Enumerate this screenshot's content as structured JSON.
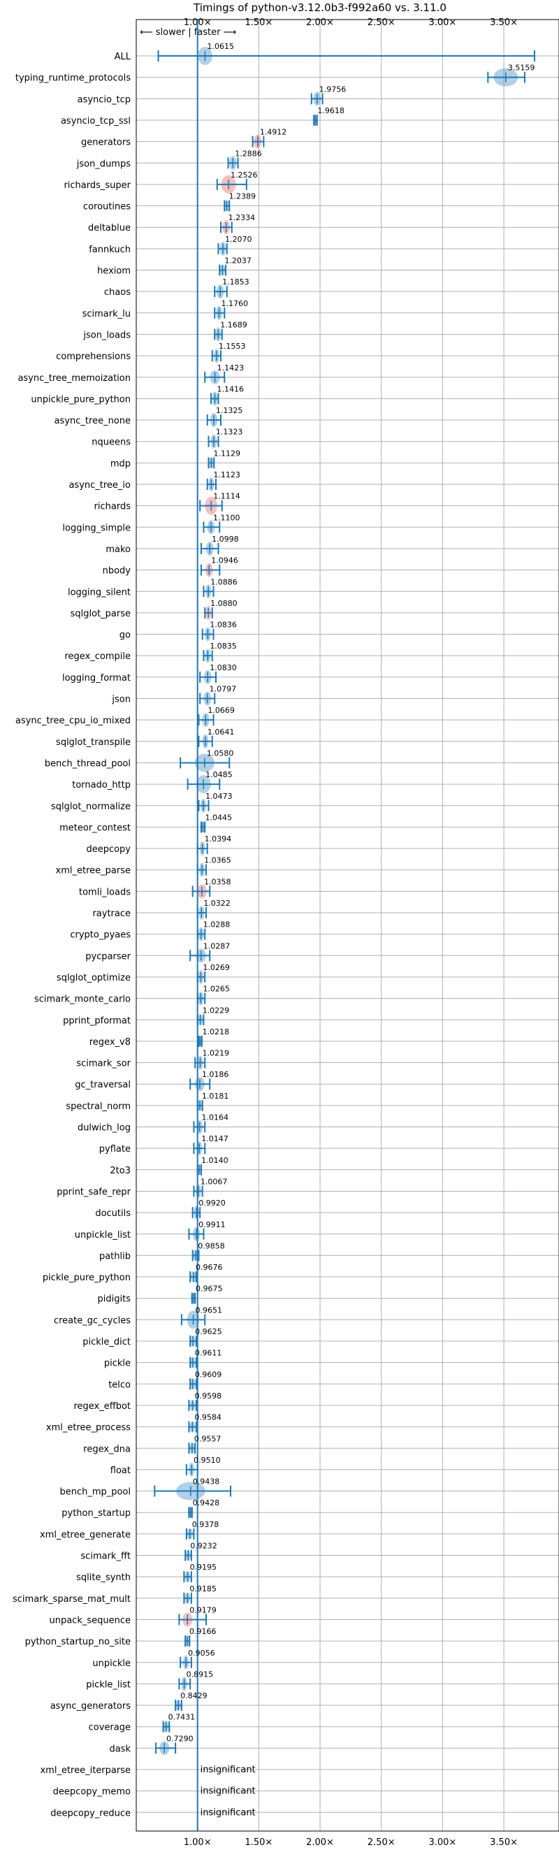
{
  "chart_data": {
    "type": "violin",
    "title": "Timings of python-v3.12.0b3-f992a60 vs. 3.11.0",
    "direction_label": "⟵ slower | faster ⟶",
    "xlim": [
      0.5,
      3.95
    ],
    "xticks": [
      1.0,
      1.5,
      2.0,
      2.5,
      3.0,
      3.5
    ],
    "xtick_labels": [
      "1.00×",
      "1.50×",
      "2.00×",
      "2.50×",
      "3.00×",
      "3.50×"
    ],
    "reference_x": 1.0,
    "grid": true,
    "colors": {
      "violin_normal": "#1f77b4",
      "violin_highlight": "#e24a4a",
      "reference_line": "#1f77b4",
      "grid": "#b0b0b0"
    },
    "benchmarks": [
      {
        "name": "ALL",
        "mean": 1.0615,
        "low": 0.68,
        "high": 3.75,
        "spread": 0.06,
        "highlight": false
      },
      {
        "name": "typing_runtime_protocols",
        "mean": 3.5159,
        "low": 3.37,
        "high": 3.67,
        "spread": 0.1,
        "highlight": false
      },
      {
        "name": "asyncio_tcp",
        "mean": 1.9756,
        "low": 1.93,
        "high": 2.02,
        "spread": 0.03,
        "highlight": false
      },
      {
        "name": "asyncio_tcp_ssl",
        "mean": 1.9618,
        "low": 1.95,
        "high": 1.975,
        "spread": 0.01,
        "highlight": false
      },
      {
        "name": "generators",
        "mean": 1.4912,
        "low": 1.45,
        "high": 1.54,
        "spread": 0.03,
        "highlight": true
      },
      {
        "name": "json_dumps",
        "mean": 1.2886,
        "low": 1.25,
        "high": 1.33,
        "spread": 0.03,
        "highlight": false
      },
      {
        "name": "richards_super",
        "mean": 1.2526,
        "low": 1.16,
        "high": 1.4,
        "spread": 0.06,
        "highlight": true
      },
      {
        "name": "coroutines",
        "mean": 1.2389,
        "low": 1.22,
        "high": 1.26,
        "spread": 0.015,
        "highlight": false
      },
      {
        "name": "deltablue",
        "mean": 1.2334,
        "low": 1.19,
        "high": 1.28,
        "spread": 0.03,
        "highlight": true
      },
      {
        "name": "fannkuch",
        "mean": 1.207,
        "low": 1.17,
        "high": 1.24,
        "spread": 0.025,
        "highlight": false
      },
      {
        "name": "hexiom",
        "mean": 1.2037,
        "low": 1.18,
        "high": 1.23,
        "spread": 0.015,
        "highlight": false
      },
      {
        "name": "chaos",
        "mean": 1.1853,
        "low": 1.14,
        "high": 1.24,
        "spread": 0.03,
        "highlight": false
      },
      {
        "name": "scimark_lu",
        "mean": 1.176,
        "low": 1.14,
        "high": 1.22,
        "spread": 0.025,
        "highlight": false
      },
      {
        "name": "json_loads",
        "mean": 1.1689,
        "low": 1.14,
        "high": 1.2,
        "spread": 0.02,
        "highlight": false
      },
      {
        "name": "comprehensions",
        "mean": 1.1553,
        "low": 1.12,
        "high": 1.19,
        "spread": 0.02,
        "highlight": false
      },
      {
        "name": "async_tree_memoization",
        "mean": 1.1423,
        "low": 1.06,
        "high": 1.22,
        "spread": 0.04,
        "highlight": false
      },
      {
        "name": "unpickle_pure_python",
        "mean": 1.1416,
        "low": 1.11,
        "high": 1.17,
        "spread": 0.02,
        "highlight": false
      },
      {
        "name": "async_tree_none",
        "mean": 1.1325,
        "low": 1.08,
        "high": 1.19,
        "spread": 0.03,
        "highlight": false
      },
      {
        "name": "nqueens",
        "mean": 1.1323,
        "low": 1.09,
        "high": 1.17,
        "spread": 0.025,
        "highlight": false
      },
      {
        "name": "mdp",
        "mean": 1.1129,
        "low": 1.09,
        "high": 1.135,
        "spread": 0.015,
        "highlight": false
      },
      {
        "name": "async_tree_io",
        "mean": 1.1123,
        "low": 1.08,
        "high": 1.15,
        "spread": 0.02,
        "highlight": false
      },
      {
        "name": "richards",
        "mean": 1.1114,
        "low": 1.02,
        "high": 1.2,
        "spread": 0.05,
        "highlight": true
      },
      {
        "name": "logging_simple",
        "mean": 1.11,
        "low": 1.05,
        "high": 1.18,
        "spread": 0.03,
        "highlight": false
      },
      {
        "name": "mako",
        "mean": 1.0998,
        "low": 1.03,
        "high": 1.17,
        "spread": 0.03,
        "highlight": false
      },
      {
        "name": "nbody",
        "mean": 1.0946,
        "low": 1.03,
        "high": 1.18,
        "spread": 0.03,
        "highlight": true
      },
      {
        "name": "logging_silent",
        "mean": 1.0886,
        "low": 1.05,
        "high": 1.13,
        "spread": 0.02,
        "highlight": false
      },
      {
        "name": "sqlglot_parse",
        "mean": 1.088,
        "low": 1.06,
        "high": 1.12,
        "spread": 0.02,
        "highlight": true
      },
      {
        "name": "go",
        "mean": 1.0836,
        "low": 1.04,
        "high": 1.13,
        "spread": 0.025,
        "highlight": false
      },
      {
        "name": "regex_compile",
        "mean": 1.0835,
        "low": 1.05,
        "high": 1.12,
        "spread": 0.02,
        "highlight": false
      },
      {
        "name": "logging_format",
        "mean": 1.083,
        "low": 1.02,
        "high": 1.15,
        "spread": 0.03,
        "highlight": false
      },
      {
        "name": "json",
        "mean": 1.0797,
        "low": 1.02,
        "high": 1.14,
        "spread": 0.03,
        "highlight": false
      },
      {
        "name": "async_tree_cpu_io_mixed",
        "mean": 1.0669,
        "low": 1.01,
        "high": 1.13,
        "spread": 0.03,
        "highlight": false
      },
      {
        "name": "sqlglot_transpile",
        "mean": 1.0641,
        "low": 1.01,
        "high": 1.12,
        "spread": 0.025,
        "highlight": false
      },
      {
        "name": "bench_thread_pool",
        "mean": 1.058,
        "low": 0.86,
        "high": 1.26,
        "spread": 0.08,
        "highlight": false
      },
      {
        "name": "tornado_http",
        "mean": 1.0485,
        "low": 0.92,
        "high": 1.18,
        "spread": 0.06,
        "highlight": false
      },
      {
        "name": "sqlglot_normalize",
        "mean": 1.0473,
        "low": 1.01,
        "high": 1.09,
        "spread": 0.02,
        "highlight": false
      },
      {
        "name": "meteor_contest",
        "mean": 1.0445,
        "low": 1.03,
        "high": 1.06,
        "spread": 0.01,
        "highlight": false
      },
      {
        "name": "deepcopy",
        "mean": 1.0394,
        "low": 1.0,
        "high": 1.08,
        "spread": 0.02,
        "highlight": false
      },
      {
        "name": "xml_etree_parse",
        "mean": 1.0365,
        "low": 1.0,
        "high": 1.07,
        "spread": 0.02,
        "highlight": false
      },
      {
        "name": "tomli_loads",
        "mean": 1.0358,
        "low": 0.96,
        "high": 1.1,
        "spread": 0.04,
        "highlight": true
      },
      {
        "name": "raytrace",
        "mean": 1.0322,
        "low": 1.0,
        "high": 1.07,
        "spread": 0.02,
        "highlight": false
      },
      {
        "name": "crypto_pyaes",
        "mean": 1.0288,
        "low": 1.0,
        "high": 1.06,
        "spread": 0.02,
        "highlight": false
      },
      {
        "name": "pycparser",
        "mean": 1.0287,
        "low": 0.94,
        "high": 1.1,
        "spread": 0.04,
        "highlight": false
      },
      {
        "name": "sqlglot_optimize",
        "mean": 1.0269,
        "low": 1.0,
        "high": 1.06,
        "spread": 0.02,
        "highlight": false
      },
      {
        "name": "scimark_monte_carlo",
        "mean": 1.0265,
        "low": 1.0,
        "high": 1.06,
        "spread": 0.02,
        "highlight": false
      },
      {
        "name": "pprint_pformat",
        "mean": 1.0229,
        "low": 1.0,
        "high": 1.05,
        "spread": 0.015,
        "highlight": false
      },
      {
        "name": "regex_v8",
        "mean": 1.0218,
        "low": 1.01,
        "high": 1.035,
        "spread": 0.01,
        "highlight": false
      },
      {
        "name": "scimark_sor",
        "mean": 1.0219,
        "low": 0.98,
        "high": 1.06,
        "spread": 0.02,
        "highlight": false
      },
      {
        "name": "gc_traversal",
        "mean": 1.0186,
        "low": 0.94,
        "high": 1.1,
        "spread": 0.04,
        "highlight": false
      },
      {
        "name": "spectral_norm",
        "mean": 1.0181,
        "low": 1.0,
        "high": 1.04,
        "spread": 0.015,
        "highlight": false
      },
      {
        "name": "dulwich_log",
        "mean": 1.0164,
        "low": 0.97,
        "high": 1.06,
        "spread": 0.025,
        "highlight": false
      },
      {
        "name": "pyflate",
        "mean": 1.0147,
        "low": 0.97,
        "high": 1.06,
        "spread": 0.02,
        "highlight": false
      },
      {
        "name": "2to3",
        "mean": 1.014,
        "low": 1.0,
        "high": 1.03,
        "spread": 0.01,
        "highlight": false
      },
      {
        "name": "pprint_safe_repr",
        "mean": 1.0067,
        "low": 0.97,
        "high": 1.04,
        "spread": 0.02,
        "highlight": false
      },
      {
        "name": "docutils",
        "mean": 0.992,
        "low": 0.96,
        "high": 1.02,
        "spread": 0.02,
        "highlight": false
      },
      {
        "name": "unpickle_list",
        "mean": 0.9911,
        "low": 0.93,
        "high": 1.05,
        "spread": 0.03,
        "highlight": false
      },
      {
        "name": "pathlib",
        "mean": 0.9858,
        "low": 0.96,
        "high": 1.01,
        "spread": 0.015,
        "highlight": false
      },
      {
        "name": "pickle_pure_python",
        "mean": 0.9676,
        "low": 0.94,
        "high": 0.99,
        "spread": 0.015,
        "highlight": false
      },
      {
        "name": "pidigits",
        "mean": 0.9675,
        "low": 0.955,
        "high": 0.98,
        "spread": 0.008,
        "highlight": false
      },
      {
        "name": "create_gc_cycles",
        "mean": 0.9651,
        "low": 0.87,
        "high": 1.06,
        "spread": 0.05,
        "highlight": false
      },
      {
        "name": "pickle_dict",
        "mean": 0.9625,
        "low": 0.94,
        "high": 0.99,
        "spread": 0.015,
        "highlight": false
      },
      {
        "name": "pickle",
        "mean": 0.9611,
        "low": 0.94,
        "high": 0.99,
        "spread": 0.015,
        "highlight": false
      },
      {
        "name": "telco",
        "mean": 0.9609,
        "low": 0.94,
        "high": 0.99,
        "spread": 0.015,
        "highlight": false
      },
      {
        "name": "regex_effbot",
        "mean": 0.9598,
        "low": 0.93,
        "high": 0.99,
        "spread": 0.015,
        "highlight": false
      },
      {
        "name": "xml_etree_process",
        "mean": 0.9584,
        "low": 0.93,
        "high": 0.99,
        "spread": 0.015,
        "highlight": false
      },
      {
        "name": "regex_dna",
        "mean": 0.9557,
        "low": 0.93,
        "high": 0.98,
        "spread": 0.012,
        "highlight": false
      },
      {
        "name": "float",
        "mean": 0.951,
        "low": 0.91,
        "high": 1.0,
        "spread": 0.02,
        "highlight": false
      },
      {
        "name": "bench_mp_pool",
        "mean": 0.9438,
        "low": 0.65,
        "high": 1.27,
        "spread": 0.12,
        "highlight": false
      },
      {
        "name": "python_startup",
        "mean": 0.9428,
        "low": 0.93,
        "high": 0.955,
        "spread": 0.008,
        "highlight": false
      },
      {
        "name": "xml_etree_generate",
        "mean": 0.9378,
        "low": 0.91,
        "high": 0.97,
        "spread": 0.015,
        "highlight": false
      },
      {
        "name": "scimark_fft",
        "mean": 0.9232,
        "low": 0.9,
        "high": 0.95,
        "spread": 0.012,
        "highlight": false
      },
      {
        "name": "sqlite_synth",
        "mean": 0.9195,
        "low": 0.89,
        "high": 0.95,
        "spread": 0.015,
        "highlight": false
      },
      {
        "name": "scimark_sparse_mat_mult",
        "mean": 0.9185,
        "low": 0.89,
        "high": 0.95,
        "spread": 0.015,
        "highlight": false
      },
      {
        "name": "unpack_sequence",
        "mean": 0.9179,
        "low": 0.85,
        "high": 1.07,
        "spread": 0.04,
        "highlight": true
      },
      {
        "name": "python_startup_no_site",
        "mean": 0.9166,
        "low": 0.9,
        "high": 0.935,
        "spread": 0.01,
        "highlight": false
      },
      {
        "name": "unpickle",
        "mean": 0.9056,
        "low": 0.86,
        "high": 0.95,
        "spread": 0.02,
        "highlight": false
      },
      {
        "name": "pickle_list",
        "mean": 0.8915,
        "low": 0.85,
        "high": 0.94,
        "spread": 0.02,
        "highlight": false
      },
      {
        "name": "async_generators",
        "mean": 0.8429,
        "low": 0.82,
        "high": 0.87,
        "spread": 0.015,
        "highlight": false
      },
      {
        "name": "coverage",
        "mean": 0.7431,
        "low": 0.72,
        "high": 0.77,
        "spread": 0.012,
        "highlight": false
      },
      {
        "name": "dask",
        "mean": 0.729,
        "low": 0.66,
        "high": 0.82,
        "spread": 0.04,
        "highlight": false
      },
      {
        "name": "xml_etree_iterparse",
        "mean": null,
        "label": "insignificant"
      },
      {
        "name": "deepcopy_memo",
        "mean": null,
        "label": "insignificant"
      },
      {
        "name": "deepcopy_reduce",
        "mean": null,
        "label": "insignificant"
      }
    ]
  }
}
